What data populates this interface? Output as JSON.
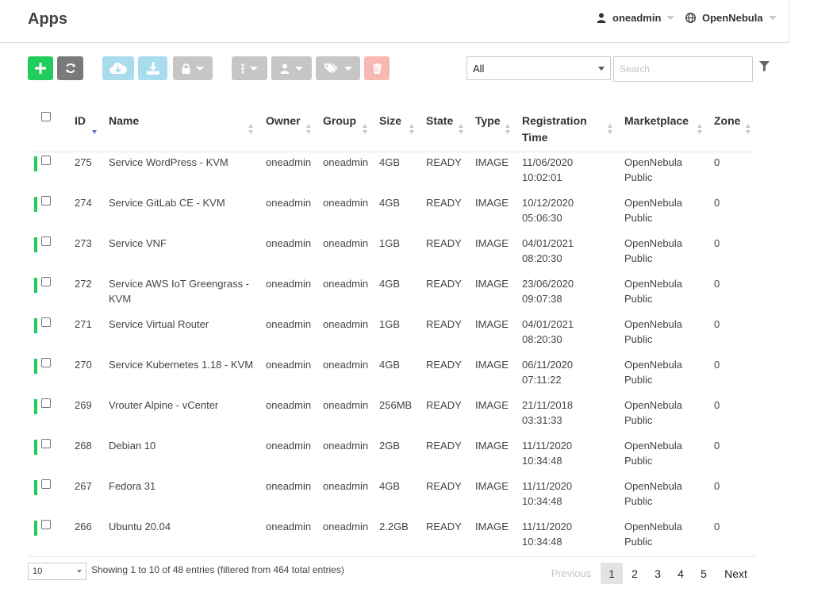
{
  "header": {
    "title": "Apps",
    "user": "oneadmin",
    "zone": "OpenNebula"
  },
  "toolbar": {
    "filter_value": "All",
    "search_placeholder": "Search"
  },
  "columns": [
    "ID",
    "Name",
    "Owner",
    "Group",
    "Size",
    "State",
    "Type",
    "Registration Time",
    "Marketplace",
    "Zone"
  ],
  "rows": [
    {
      "id": "275",
      "name": "Service WordPress - KVM",
      "owner": "oneadmin",
      "group": "oneadmin",
      "size": "4GB",
      "state": "READY",
      "type": "IMAGE",
      "reg_date": "11/06/2020",
      "reg_time": "10:02:01",
      "market_1": "OpenNebula",
      "market_2": "Public",
      "zone": "0"
    },
    {
      "id": "274",
      "name": "Service GitLab CE - KVM",
      "owner": "oneadmin",
      "group": "oneadmin",
      "size": "4GB",
      "state": "READY",
      "type": "IMAGE",
      "reg_date": "10/12/2020",
      "reg_time": "05:06:30",
      "market_1": "OpenNebula",
      "market_2": "Public",
      "zone": "0"
    },
    {
      "id": "273",
      "name": "Service VNF",
      "owner": "oneadmin",
      "group": "oneadmin",
      "size": "1GB",
      "state": "READY",
      "type": "IMAGE",
      "reg_date": "04/01/2021",
      "reg_time": "08:20:30",
      "market_1": "OpenNebula",
      "market_2": "Public",
      "zone": "0"
    },
    {
      "id": "272",
      "name": "Service AWS IoT Greengrass -",
      "name_2": "KVM",
      "owner": "oneadmin",
      "group": "oneadmin",
      "size": "4GB",
      "state": "READY",
      "type": "IMAGE",
      "reg_date": "23/06/2020",
      "reg_time": "09:07:38",
      "market_1": "OpenNebula",
      "market_2": "Public",
      "zone": "0"
    },
    {
      "id": "271",
      "name": "Service Virtual Router",
      "owner": "oneadmin",
      "group": "oneadmin",
      "size": "1GB",
      "state": "READY",
      "type": "IMAGE",
      "reg_date": "04/01/2021",
      "reg_time": "08:20:30",
      "market_1": "OpenNebula",
      "market_2": "Public",
      "zone": "0"
    },
    {
      "id": "270",
      "name": "Service Kubernetes 1.18 - KVM",
      "owner": "oneadmin",
      "group": "oneadmin",
      "size": "4GB",
      "state": "READY",
      "type": "IMAGE",
      "reg_date": "06/11/2020",
      "reg_time": "07:11:22",
      "market_1": "OpenNebula",
      "market_2": "Public",
      "zone": "0"
    },
    {
      "id": "269",
      "name": "Vrouter Alpine - vCenter",
      "owner": "oneadmin",
      "group": "oneadmin",
      "size": "256MB",
      "state": "READY",
      "type": "IMAGE",
      "reg_date": "21/11/2018",
      "reg_time": "03:31:33",
      "market_1": "OpenNebula",
      "market_2": "Public",
      "zone": "0"
    },
    {
      "id": "268",
      "name": "Debian 10",
      "owner": "oneadmin",
      "group": "oneadmin",
      "size": "2GB",
      "state": "READY",
      "type": "IMAGE",
      "reg_date": "11/11/2020",
      "reg_time": "10:34:48",
      "market_1": "OpenNebula",
      "market_2": "Public",
      "zone": "0"
    },
    {
      "id": "267",
      "name": "Fedora 31",
      "owner": "oneadmin",
      "group": "oneadmin",
      "size": "4GB",
      "state": "READY",
      "type": "IMAGE",
      "reg_date": "11/11/2020",
      "reg_time": "10:34:48",
      "market_1": "OpenNebula",
      "market_2": "Public",
      "zone": "0"
    },
    {
      "id": "266",
      "name": "Ubuntu 20.04",
      "owner": "oneadmin",
      "group": "oneadmin",
      "size": "2.2GB",
      "state": "READY",
      "type": "IMAGE",
      "reg_date": "11/11/2020",
      "reg_time": "10:34:48",
      "market_1": "OpenNebula",
      "market_2": "Public",
      "zone": "0"
    }
  ],
  "footer": {
    "page_length": "10",
    "info": "Showing 1 to 10 of 48 entries (filtered from 464 total entries)",
    "previous": "Previous",
    "pages": [
      "1",
      "2",
      "3",
      "4",
      "5"
    ],
    "next": "Next"
  },
  "colors": {
    "accent_green": "#1fcc5c",
    "sort_active": "#5f6fcf"
  }
}
